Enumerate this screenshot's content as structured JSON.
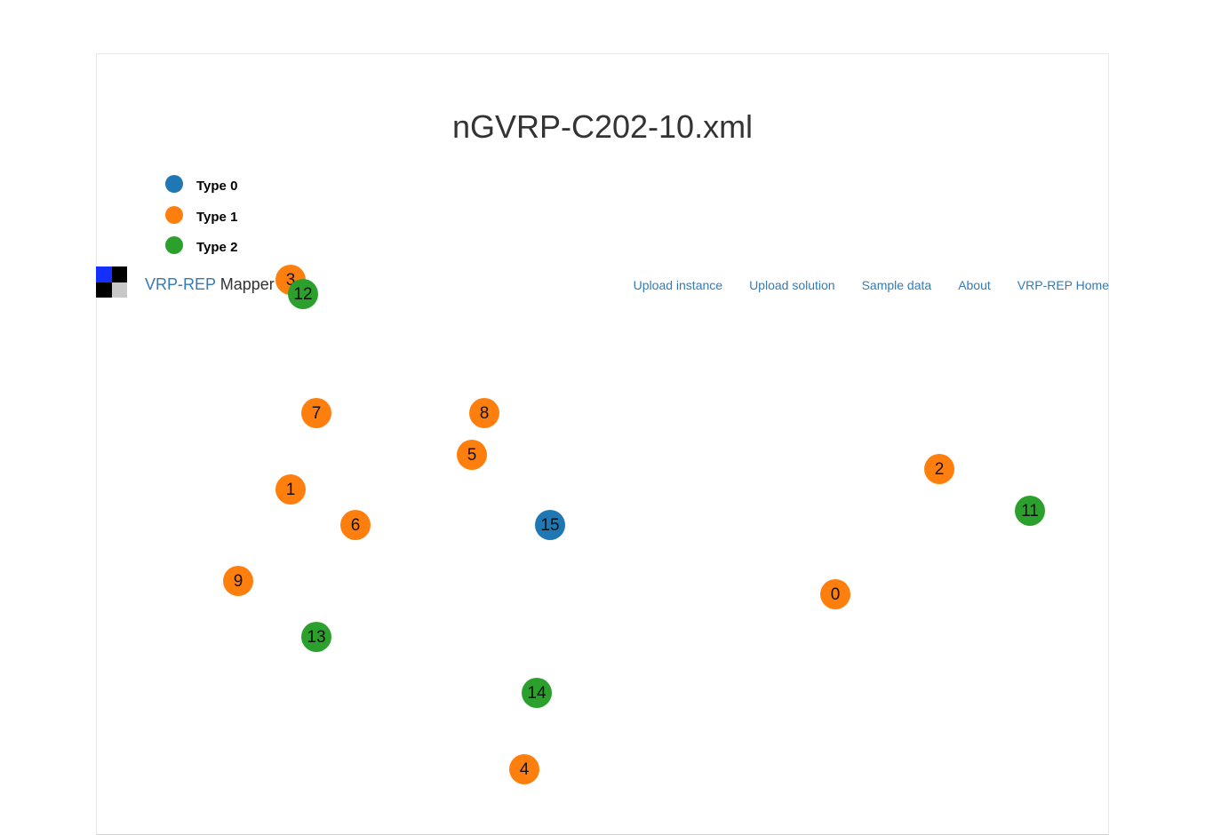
{
  "map": {
    "title": "nGVRP-C202-10.xml",
    "legend": [
      {
        "label": "Type 0",
        "color": "#1f77b4"
      },
      {
        "label": "Type 1",
        "color": "#ff7f0e"
      },
      {
        "label": "Type 2",
        "color": "#2ca02c"
      }
    ]
  },
  "navbar": {
    "brand_highlight": "VRP-REP",
    "brand_rest": " Mapper",
    "logo_colors": [
      "#1330ff",
      "#000000",
      "#000000",
      "#c8c8c8"
    ],
    "links": [
      "Upload instance",
      "Upload solution",
      "Sample data",
      "About",
      "VRP-REP Home"
    ]
  },
  "nodes": [
    {
      "id": "3",
      "type": 1
    },
    {
      "id": "12",
      "type": 2
    },
    {
      "id": "7",
      "type": 1
    },
    {
      "id": "8",
      "type": 1
    },
    {
      "id": "5",
      "type": 1
    },
    {
      "id": "2",
      "type": 1
    },
    {
      "id": "11",
      "type": 2
    },
    {
      "id": "1",
      "type": 1
    },
    {
      "id": "6",
      "type": 1
    },
    {
      "id": "15",
      "type": 0
    },
    {
      "id": "9",
      "type": 1
    },
    {
      "id": "0",
      "type": 1
    },
    {
      "id": "13",
      "type": 2
    },
    {
      "id": "14",
      "type": 2
    },
    {
      "id": "4",
      "type": 1
    }
  ]
}
